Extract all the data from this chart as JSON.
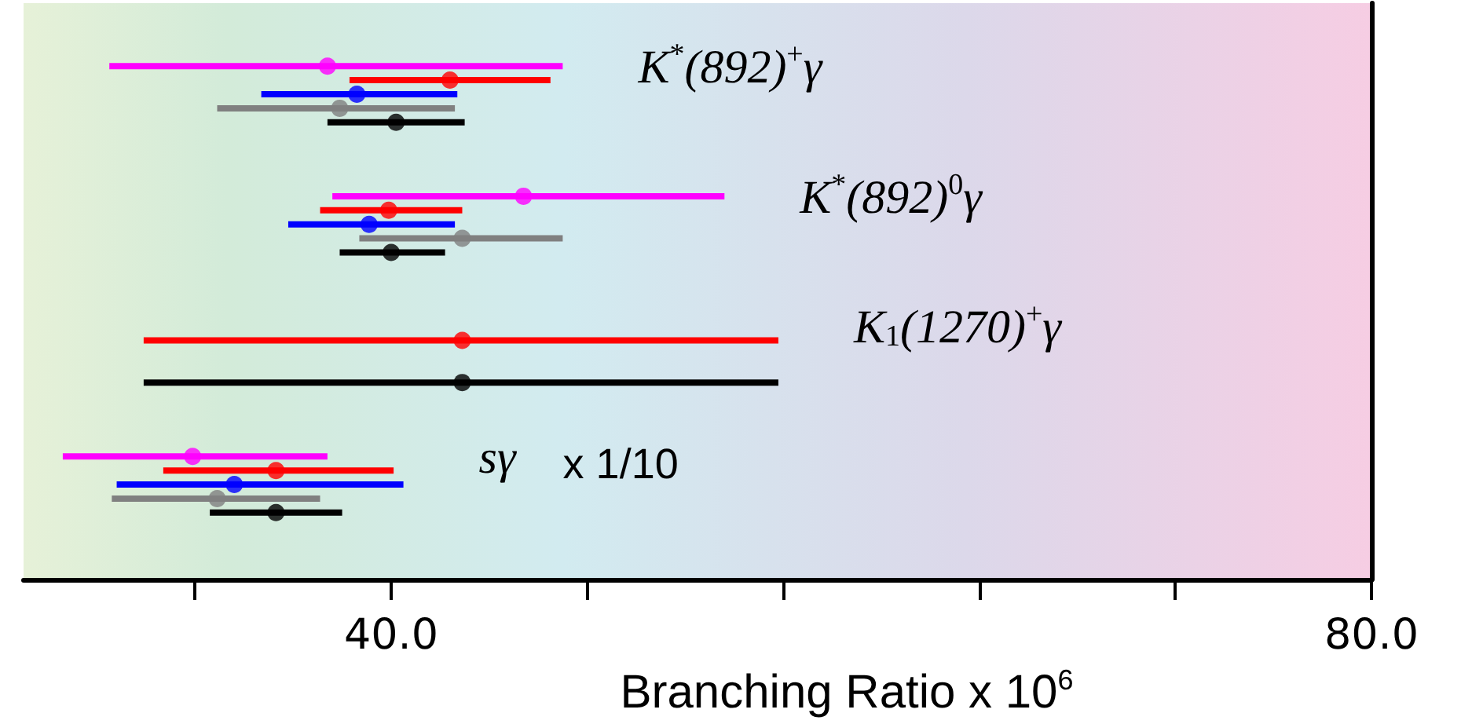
{
  "chart_data": {
    "type": "scatter",
    "orientation": "horizontal",
    "marker": "circle",
    "grid": false,
    "categories": [
      "K$^{*}$(892)$^{+}$γ",
      "K$^{*}$(892)$^{0}$γ",
      "K$_{1}$(1270)$^{+}$γ",
      "sγ"
    ],
    "series": [
      {
        "color": "#ff00ff",
        "values": [
          37.4,
          45.4,
          null,
          31.9
        ],
        "errors": [
          [
            28.5,
            47.0
          ],
          [
            37.6,
            53.6
          ],
          null,
          [
            26.6,
            37.4
          ]
        ]
      },
      {
        "color": "#ff0000",
        "values": [
          42.4,
          39.9,
          42.9,
          35.3
        ],
        "errors": [
          [
            38.3,
            46.5
          ],
          [
            37.1,
            42.9
          ],
          [
            29.9,
            55.8
          ],
          [
            30.7,
            40.1
          ]
        ]
      },
      {
        "color": "#0000ff",
        "values": [
          38.6,
          39.1,
          null,
          33.6
        ],
        "errors": [
          [
            34.7,
            42.7
          ],
          [
            35.8,
            42.6
          ],
          null,
          [
            28.8,
            40.5
          ]
        ]
      },
      {
        "color": "#808080",
        "values": [
          37.9,
          42.9,
          null,
          32.9
        ],
        "errors": [
          [
            32.9,
            42.6
          ],
          [
            38.7,
            47.0
          ],
          null,
          [
            28.6,
            37.1
          ]
        ]
      },
      {
        "color": "#000000",
        "values": [
          40.2,
          40.0,
          42.9,
          35.3
        ],
        "errors": [
          [
            37.4,
            43.0
          ],
          [
            37.9,
            42.2
          ],
          [
            29.9,
            55.8
          ],
          [
            32.6,
            38.0
          ]
        ]
      }
    ],
    "xlim": [
      25,
      80
    ],
    "xticks": [
      {
        "value": 32,
        "label": null
      },
      {
        "value": 40,
        "label": "40.0"
      },
      {
        "value": 48,
        "label": null
      },
      {
        "value": 56,
        "label": null
      },
      {
        "value": 64,
        "label": null
      },
      {
        "value": 72,
        "label": null
      },
      {
        "value": 80,
        "label": "80.0"
      }
    ],
    "xlabel": "Branching Ratio x 10$^{6}$",
    "annotations": [
      "x 1/10"
    ]
  }
}
